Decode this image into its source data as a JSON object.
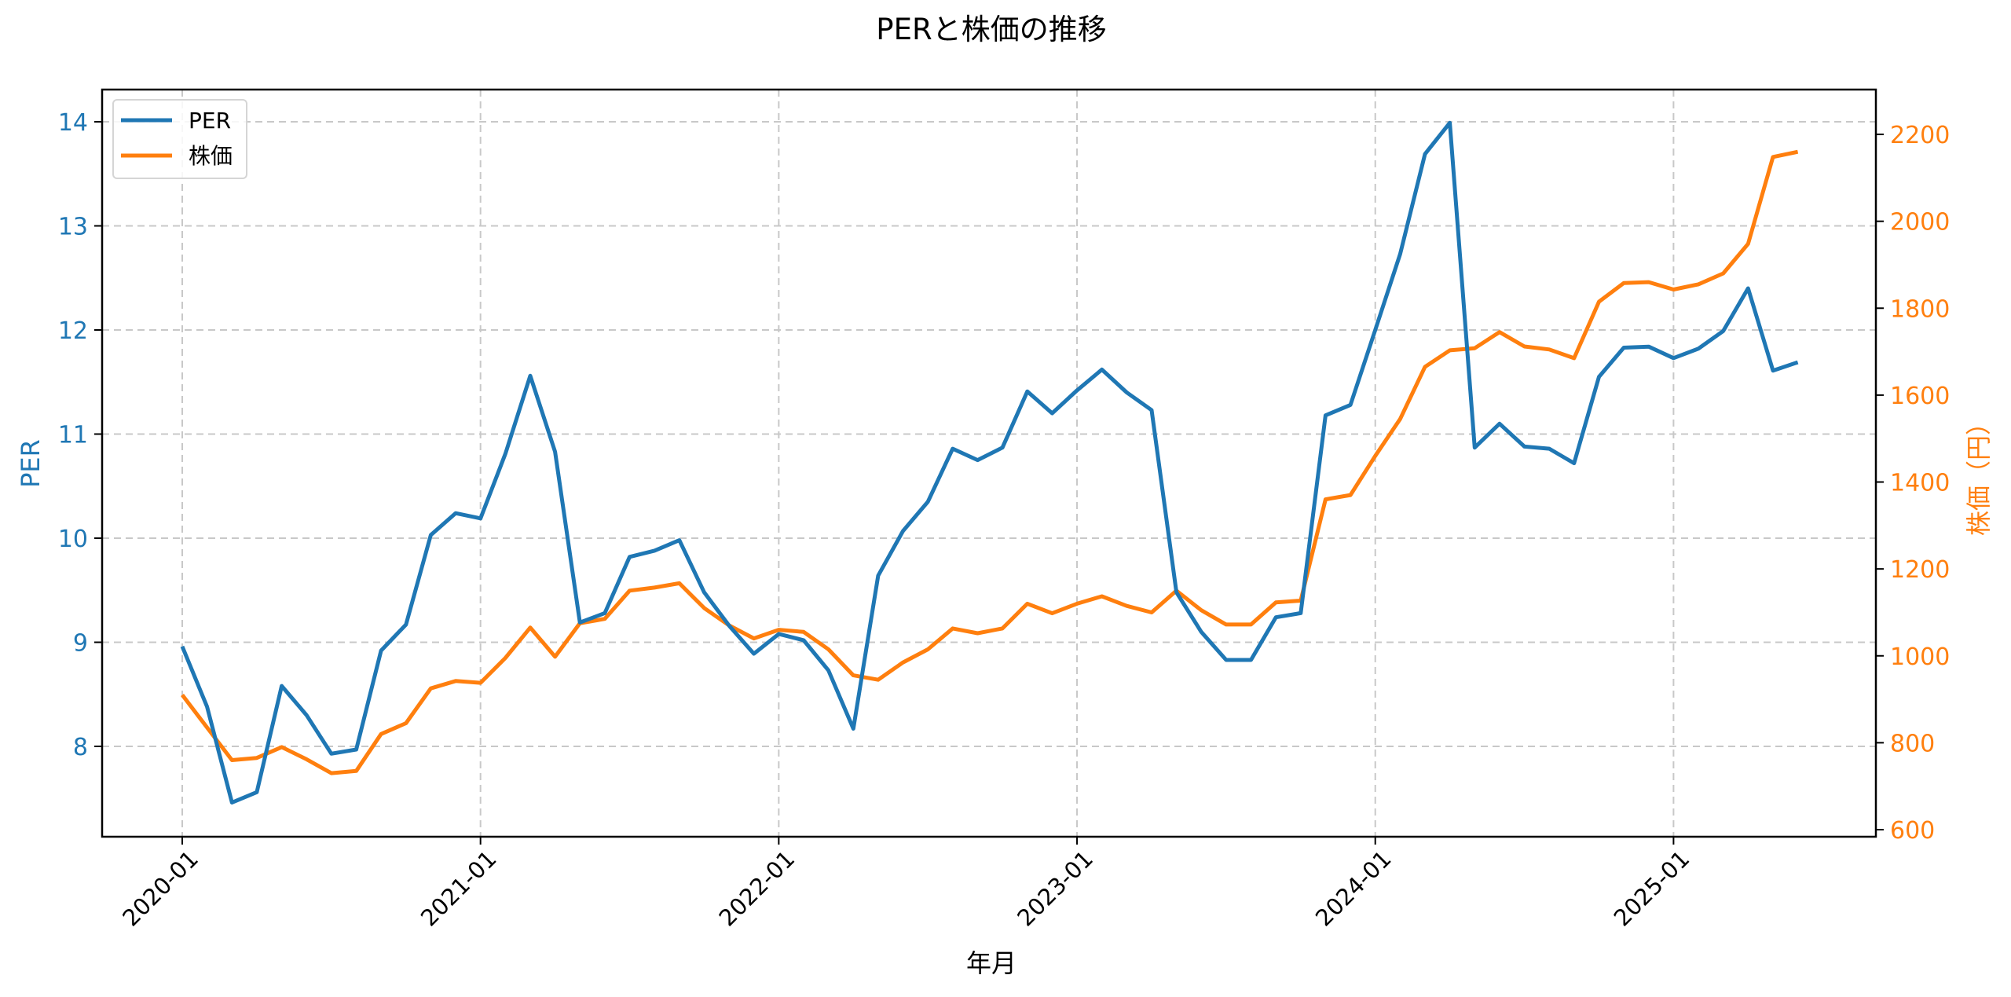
{
  "chart_data": {
    "type": "line",
    "title": "PERと株価の推移",
    "xlabel": "年月",
    "ylabel": "PER",
    "ylabel_right": "株価（円）",
    "x_ticks": [
      "2020-01",
      "2021-01",
      "2022-01",
      "2023-01",
      "2024-01",
      "2025-01"
    ],
    "y_ticks_left": [
      8,
      9,
      10,
      11,
      12,
      13,
      14
    ],
    "y_ticks_right": [
      600,
      800,
      1000,
      1200,
      1400,
      1600,
      1800,
      2000,
      2200
    ],
    "ylim_left": [
      7.13,
      14.3
    ],
    "ylim_right": [
      585,
      2260
    ],
    "grid": true,
    "legend_position": "upper left",
    "x": [
      "2020-01",
      "2020-02",
      "2020-03",
      "2020-04",
      "2020-05",
      "2020-06",
      "2020-07",
      "2020-08",
      "2020-09",
      "2020-10",
      "2020-11",
      "2020-12",
      "2021-01",
      "2021-02",
      "2021-03",
      "2021-04",
      "2021-05",
      "2021-06",
      "2021-07",
      "2021-08",
      "2021-09",
      "2021-10",
      "2021-11",
      "2021-12",
      "2022-01",
      "2022-02",
      "2022-03",
      "2022-04",
      "2022-05",
      "2022-06",
      "2022-07",
      "2022-08",
      "2022-09",
      "2022-10",
      "2022-11",
      "2022-12",
      "2023-01",
      "2023-02",
      "2023-03",
      "2023-04",
      "2023-05",
      "2023-06",
      "2023-07",
      "2023-08",
      "2023-09",
      "2023-10",
      "2023-11",
      "2023-12",
      "2024-01",
      "2024-02",
      "2024-03",
      "2024-04",
      "2024-05",
      "2024-06",
      "2024-07",
      "2024-08",
      "2024-09",
      "2024-10",
      "2024-11",
      "2024-12",
      "2025-01",
      "2025-02",
      "2025-03",
      "2025-04",
      "2025-05",
      "2025-06"
    ],
    "series": [
      {
        "name": "PER",
        "axis": "left",
        "color": "#1f77b4",
        "values": [
          8.96,
          8.38,
          7.46,
          7.56,
          8.58,
          8.3,
          7.93,
          7.97,
          8.92,
          9.17,
          10.03,
          10.24,
          10.19,
          10.81,
          11.56,
          10.83,
          9.19,
          9.28,
          9.82,
          9.88,
          9.98,
          9.48,
          9.16,
          8.89,
          9.08,
          9.02,
          8.73,
          8.17,
          9.64,
          10.07,
          10.35,
          10.86,
          10.75,
          10.87,
          11.41,
          11.2,
          11.42,
          11.62,
          11.4,
          11.23,
          9.48,
          9.1,
          8.83,
          8.83,
          9.24,
          9.28,
          11.18,
          11.28,
          12.0,
          12.73,
          13.69,
          13.99,
          10.87,
          11.1,
          10.88,
          10.86,
          10.72,
          11.55,
          11.83,
          11.84,
          11.73,
          11.82,
          11.99,
          12.4,
          11.61,
          11.69
        ]
      },
      {
        "name": "株価",
        "axis": "right",
        "color": "#ff7f0e",
        "values": [
          910,
          835,
          760,
          765,
          790,
          762,
          730,
          735,
          820,
          845,
          925,
          942,
          938,
          995,
          1065,
          998,
          1075,
          1085,
          1150,
          1157,
          1167,
          1110,
          1070,
          1040,
          1060,
          1055,
          1015,
          955,
          945,
          985,
          1015,
          1063,
          1052,
          1063,
          1120,
          1098,
          1120,
          1137,
          1115,
          1100,
          1150,
          1105,
          1072,
          1072,
          1123,
          1127,
          1360,
          1370,
          1460,
          1545,
          1665,
          1703,
          1708,
          1745,
          1712,
          1705,
          1685,
          1815,
          1858,
          1860,
          1843,
          1855,
          1880,
          1948,
          2148,
          2160
        ]
      }
    ]
  },
  "colors": {
    "per": "#1f77b4",
    "price": "#ff7f0e",
    "grid": "#c8c8c8",
    "axis": "#000000"
  },
  "legend": {
    "items": [
      {
        "label": "PER"
      },
      {
        "label": "株価"
      }
    ]
  }
}
